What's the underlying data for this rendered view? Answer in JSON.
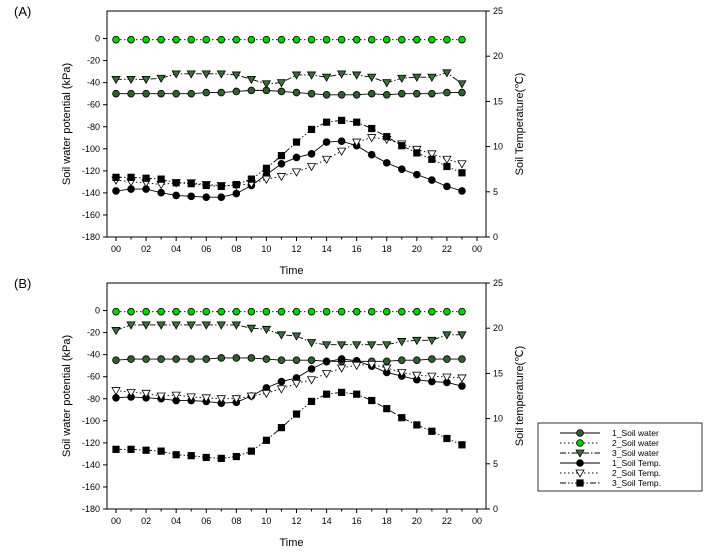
{
  "chart_data": [
    {
      "type": "line",
      "panel_label": "(A)",
      "xlabel": "Time",
      "ylabel_left": "Soil water potential (kPa)",
      "ylabel_right": "Soil Temperature(℃)",
      "x": [
        0,
        1,
        2,
        3,
        4,
        5,
        6,
        7,
        8,
        9,
        10,
        11,
        12,
        13,
        14,
        15,
        16,
        17,
        18,
        19,
        20,
        21,
        22,
        23
      ],
      "x_tick_labels": [
        "00",
        "02",
        "04",
        "06",
        "08",
        "10",
        "12",
        "14",
        "16",
        "18",
        "20",
        "22",
        "00"
      ],
      "ylim_left": [
        -180,
        25
      ],
      "yticks_left": [
        0,
        -20,
        -40,
        -60,
        -80,
        -100,
        -120,
        -140,
        -160,
        -180
      ],
      "ylim_right": [
        0,
        25
      ],
      "yticks_right": [
        0,
        5,
        10,
        15,
        20,
        25
      ],
      "series": [
        {
          "name": "1_Soil water",
          "axis": "left",
          "marker": "circle",
          "fill": "#2f5f2f",
          "line": "solid",
          "values": [
            -50,
            -50,
            -50,
            -50,
            -50,
            -50,
            -49,
            -49,
            -48,
            -47,
            -47,
            -48,
            -49,
            -50,
            -51,
            -51,
            -51,
            -50,
            -51,
            -50,
            -50,
            -50,
            -49,
            -49
          ]
        },
        {
          "name": "2_Soil water",
          "axis": "left",
          "marker": "circle",
          "fill": "#00d000",
          "line": "dotted",
          "values": [
            -1,
            -1,
            -1,
            -1,
            -1,
            -1,
            -1,
            -1,
            -1,
            -1,
            -1,
            -1,
            -1,
            -1,
            -1,
            -1,
            -1,
            -1,
            -1,
            -1,
            -1,
            -1,
            -1,
            -1
          ]
        },
        {
          "name": "3_Soil water",
          "axis": "left",
          "marker": "tri-down",
          "fill": "#3a6e3a",
          "line": "dashdot",
          "values": [
            -37,
            -37,
            -37,
            -36,
            -32,
            -32,
            -32,
            -32,
            -33,
            -37,
            -41,
            -40,
            -33,
            -33,
            -35,
            -32,
            -33,
            -35,
            -40,
            -36,
            -35,
            -35,
            -31,
            -41
          ]
        },
        {
          "name": "1_Soil Temp.",
          "axis": "right",
          "marker": "circle",
          "fill": "#000000",
          "line": "solid",
          "values": [
            5.1,
            5.3,
            5.3,
            4.9,
            4.6,
            4.5,
            4.4,
            4.4,
            4.8,
            5.7,
            6.9,
            8.1,
            8.8,
            9.2,
            10.5,
            10.6,
            10.1,
            9.1,
            8.2,
            7.5,
            6.9,
            6.3,
            5.6,
            5.1
          ]
        },
        {
          "name": "2_Soil Temp.",
          "axis": "right",
          "marker": "tri-down-open",
          "fill": "#ffffff",
          "line": "dotted",
          "values": [
            6.3,
            6.1,
            6.0,
            5.8,
            6.0,
            6.0,
            5.8,
            5.7,
            5.7,
            5.9,
            6.4,
            6.7,
            7.2,
            7.8,
            8.6,
            9.5,
            10.5,
            11.0,
            10.8,
            10.3,
            9.7,
            9.2,
            8.6,
            8.1
          ]
        },
        {
          "name": "3_Soil Temp.",
          "axis": "right",
          "marker": "square",
          "fill": "#000000",
          "line": "dashdotdot",
          "values": [
            6.6,
            6.6,
            6.5,
            6.4,
            6.0,
            5.9,
            5.7,
            5.6,
            5.8,
            6.4,
            7.6,
            9.0,
            10.5,
            11.9,
            12.7,
            12.9,
            12.7,
            12.0,
            11.1,
            10.1,
            9.3,
            8.6,
            7.8,
            7.1
          ]
        }
      ]
    },
    {
      "type": "line",
      "panel_label": "(B)",
      "xlabel": "Time",
      "ylabel_left": "Soil water potential (kPa)",
      "ylabel_right": "Soil temperature(℃)",
      "x": [
        0,
        1,
        2,
        3,
        4,
        5,
        6,
        7,
        8,
        9,
        10,
        11,
        12,
        13,
        14,
        15,
        16,
        17,
        18,
        19,
        20,
        21,
        22,
        23
      ],
      "x_tick_labels": [
        "00",
        "02",
        "04",
        "06",
        "08",
        "10",
        "12",
        "14",
        "16",
        "18",
        "20",
        "22",
        "00"
      ],
      "ylim_left": [
        -180,
        25
      ],
      "yticks_left": [
        0,
        -20,
        -40,
        -60,
        -80,
        -100,
        -120,
        -140,
        -160,
        -180
      ],
      "ylim_right": [
        0,
        25
      ],
      "yticks_right": [
        0,
        5,
        10,
        15,
        20,
        25
      ],
      "series": [
        {
          "name": "1_Soil water",
          "axis": "left",
          "marker": "circle",
          "fill": "#2f5f2f",
          "line": "solid",
          "values": [
            -45,
            -44,
            -44,
            -44,
            -44,
            -44,
            -44,
            -43,
            -43,
            -43,
            -44,
            -45,
            -45,
            -45,
            -46,
            -46,
            -46,
            -46,
            -46,
            -45,
            -45,
            -44,
            -44,
            -44
          ]
        },
        {
          "name": "2_Soil water",
          "axis": "left",
          "marker": "circle",
          "fill": "#00d000",
          "line": "dotted",
          "values": [
            -1,
            -1,
            -1,
            -1,
            -1,
            -1,
            -1,
            -1,
            -1,
            -1,
            -1,
            -1,
            -1,
            -1,
            -1,
            -1,
            -1,
            -1,
            -1,
            -1,
            -1,
            -1,
            -1,
            -1
          ]
        },
        {
          "name": "3_Soil water",
          "axis": "left",
          "marker": "tri-down",
          "fill": "#3a6e3a",
          "line": "dashdot",
          "values": [
            -18,
            -13,
            -13,
            -13,
            -13,
            -13,
            -13,
            -13,
            -13,
            -16,
            -17,
            -22,
            -23,
            -29,
            -31,
            -31,
            -31,
            -31,
            -31,
            -28,
            -27,
            -27,
            -22,
            -22
          ]
        },
        {
          "name": "1_Soil Temp.",
          "axis": "right",
          "marker": "circle",
          "fill": "#000000",
          "line": "solid",
          "values": [
            12.3,
            12.4,
            12.3,
            12.2,
            12.0,
            12.0,
            11.9,
            11.7,
            11.8,
            12.5,
            13.4,
            14.1,
            14.5,
            15.5,
            16.3,
            16.6,
            16.4,
            15.8,
            15.1,
            14.7,
            14.3,
            14.1,
            14.0,
            13.6
          ]
        },
        {
          "name": "2_Soil Temp.",
          "axis": "right",
          "marker": "tri-down-open",
          "fill": "#ffffff",
          "line": "dotted",
          "values": [
            13.1,
            12.9,
            12.8,
            12.5,
            12.6,
            12.4,
            12.3,
            12.2,
            12.2,
            12.5,
            12.8,
            13.3,
            13.9,
            14.3,
            15.0,
            15.6,
            15.9,
            16.0,
            15.6,
            15.1,
            14.8,
            14.7,
            14.6,
            14.5
          ]
        },
        {
          "name": "3_Soil Temp.",
          "axis": "right",
          "marker": "square",
          "fill": "#000000",
          "line": "dashdotdot",
          "values": [
            6.6,
            6.6,
            6.5,
            6.4,
            6.0,
            5.9,
            5.7,
            5.6,
            5.8,
            6.4,
            7.6,
            9.0,
            10.5,
            11.9,
            12.7,
            12.9,
            12.7,
            12.0,
            11.1,
            10.1,
            9.3,
            8.6,
            7.8,
            7.1
          ]
        }
      ]
    }
  ],
  "legend": {
    "location": "lower-right",
    "entries": [
      "1_Soil water",
      "2_Soil water",
      "3_Soil water",
      "1_Soil Temp.",
      "2_Soil Temp.",
      "3_Soil Temp."
    ]
  }
}
